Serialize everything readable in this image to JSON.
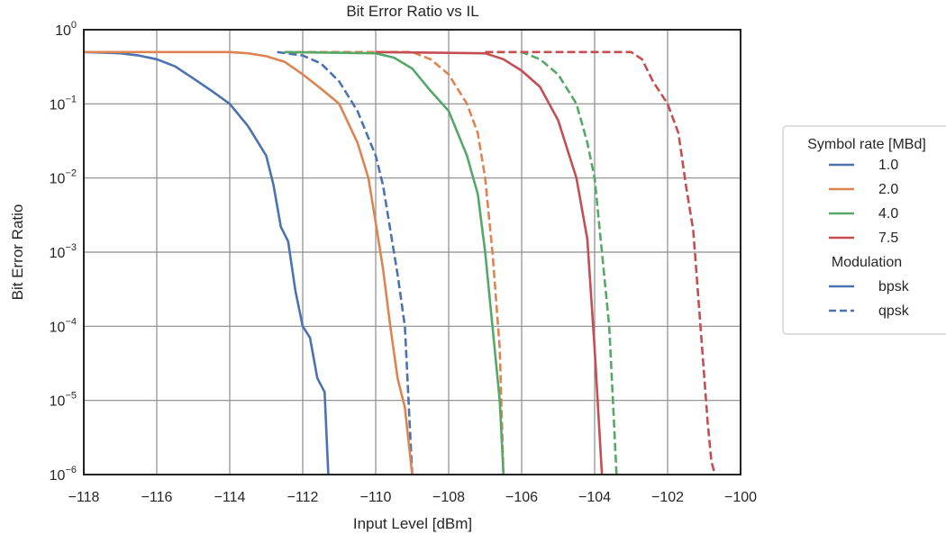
{
  "chart_data": {
    "type": "line",
    "title": "Bit Error Ratio vs IL",
    "xlabel": "Input Level [dBm]",
    "ylabel": "Bit Error Ratio",
    "xlim": [
      -118,
      -100
    ],
    "ylim": [
      1e-06,
      1
    ],
    "yscale": "log",
    "grid": true,
    "x_ticks": [
      -118,
      -116,
      -114,
      -112,
      -110,
      -108,
      -106,
      -104,
      -102,
      -100
    ],
    "x_tick_labels": [
      "−118",
      "−116",
      "−114",
      "−112",
      "−110",
      "−108",
      "−106",
      "−104",
      "−102",
      "−100"
    ],
    "y_tick_exponents": [
      0,
      -1,
      -2,
      -3,
      -4,
      -5,
      -6
    ],
    "legend": {
      "placement": "right",
      "hue_title": "Symbol rate [MBd]",
      "hue_entries": [
        {
          "label": "1.0",
          "color": "#4c72b0"
        },
        {
          "label": "2.0",
          "color": "#dd8452"
        },
        {
          "label": "4.0",
          "color": "#55a868"
        },
        {
          "label": "7.5",
          "color": "#c44e52"
        }
      ],
      "style_title": "Modulation",
      "style_entries": [
        {
          "label": "bpsk",
          "dash": "solid"
        },
        {
          "label": "qpsk",
          "dash": "dashed"
        }
      ]
    },
    "series": [
      {
        "symbol_rate": "1.0",
        "modulation": "bpsk",
        "color": "#4c72b0",
        "dash": "solid",
        "x": [
          -118,
          -117,
          -116.5,
          -116,
          -115.5,
          -115,
          -114.5,
          -114,
          -113.5,
          -113,
          -112.8,
          -112.6,
          -112.4,
          -112.2,
          -112.0,
          -111.8,
          -111.6,
          -111.4,
          -111.3
        ],
        "y": [
          0.5,
          0.48,
          0.45,
          0.4,
          0.32,
          0.22,
          0.15,
          0.1,
          0.05,
          0.02,
          0.008,
          0.0022,
          0.0014,
          0.0003,
          0.0001,
          7e-05,
          2e-05,
          1.3e-05,
          1e-06
        ]
      },
      {
        "symbol_rate": "1.0",
        "modulation": "qpsk",
        "color": "#4c72b0",
        "dash": "dashed",
        "x": [
          -112.7,
          -112,
          -111.5,
          -111,
          -110.5,
          -110,
          -109.8,
          -109.6,
          -109.4,
          -109.2,
          -109.0
        ],
        "y": [
          0.5,
          0.45,
          0.35,
          0.2,
          0.08,
          0.02,
          0.008,
          0.002,
          0.0005,
          0.0001,
          1e-06
        ]
      },
      {
        "symbol_rate": "2.0",
        "modulation": "bpsk",
        "color": "#dd8452",
        "dash": "solid",
        "x": [
          -118,
          -114,
          -113.5,
          -113,
          -112.5,
          -112,
          -111.5,
          -111,
          -110.5,
          -110.2,
          -110.0,
          -109.8,
          -109.6,
          -109.4,
          -109.2,
          -109.0
        ],
        "y": [
          0.5,
          0.5,
          0.48,
          0.44,
          0.37,
          0.25,
          0.16,
          0.1,
          0.03,
          0.01,
          0.0025,
          0.0006,
          0.0001,
          2e-05,
          8e-06,
          1e-06
        ]
      },
      {
        "symbol_rate": "2.0",
        "modulation": "qpsk",
        "color": "#dd8452",
        "dash": "dashed",
        "x": [
          -112.5,
          -109,
          -108.5,
          -108,
          -107.5,
          -107.2,
          -107,
          -106.8,
          -106.6,
          -106.5
        ],
        "y": [
          0.5,
          0.5,
          0.4,
          0.25,
          0.1,
          0.04,
          0.01,
          0.001,
          5e-05,
          1e-06
        ]
      },
      {
        "symbol_rate": "4.0",
        "modulation": "bpsk",
        "color": "#55a868",
        "dash": "solid",
        "x": [
          -112.5,
          -110,
          -109.5,
          -109,
          -108.5,
          -108,
          -107.5,
          -107.2,
          -107.0,
          -106.8,
          -106.6,
          -106.5
        ],
        "y": [
          0.5,
          0.48,
          0.42,
          0.3,
          0.15,
          0.08,
          0.02,
          0.006,
          0.001,
          0.0001,
          1e-05,
          1e-06
        ]
      },
      {
        "symbol_rate": "4.0",
        "modulation": "qpsk",
        "color": "#55a868",
        "dash": "dashed",
        "x": [
          -107,
          -106,
          -105.5,
          -105,
          -104.5,
          -104.2,
          -104,
          -103.8,
          -103.6,
          -103.5,
          -103.4
        ],
        "y": [
          0.5,
          0.5,
          0.4,
          0.25,
          0.1,
          0.03,
          0.01,
          0.001,
          0.0001,
          1e-05,
          1e-06
        ]
      },
      {
        "symbol_rate": "7.5",
        "modulation": "bpsk",
        "color": "#c44e52",
        "dash": "solid",
        "x": [
          -110,
          -107,
          -106.5,
          -106,
          -105.5,
          -105,
          -104.5,
          -104.2,
          -104.0,
          -103.8
        ],
        "y": [
          0.5,
          0.48,
          0.4,
          0.28,
          0.17,
          0.06,
          0.01,
          0.0015,
          5e-05,
          1e-06
        ]
      },
      {
        "symbol_rate": "7.5",
        "modulation": "qpsk",
        "color": "#c44e52",
        "dash": "dashed",
        "x": [
          -107,
          -103,
          -102.7,
          -102.4,
          -102.0,
          -101.7,
          -101.5,
          -101.3,
          -101.1,
          -100.9,
          -100.8,
          -100.7
        ],
        "y": [
          0.5,
          0.5,
          0.4,
          0.2,
          0.1,
          0.04,
          0.008,
          0.002,
          0.0001,
          5e-06,
          1.5e-06,
          1e-06
        ]
      }
    ]
  }
}
